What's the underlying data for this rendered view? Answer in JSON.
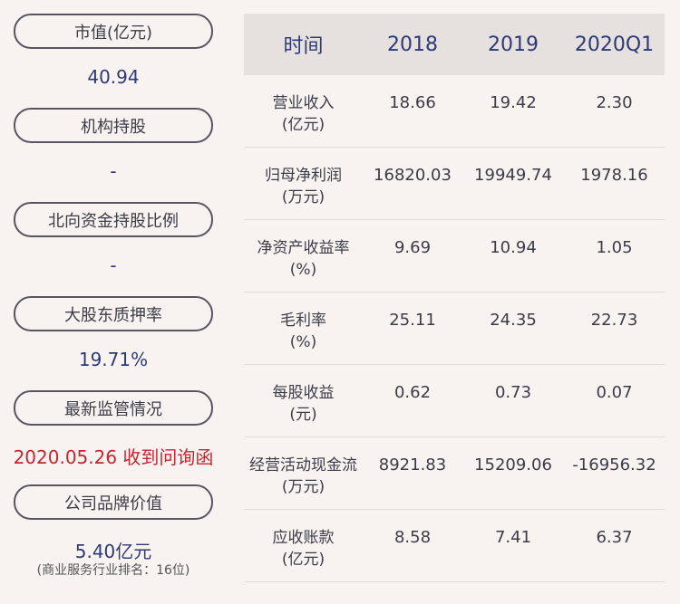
{
  "left_panel": [
    {
      "label": "市值(亿元)",
      "value": "40.94",
      "value_style": "normal"
    },
    {
      "label": "机构持股",
      "value": "-",
      "value_style": "normal"
    },
    {
      "label": "北向资金持股比例",
      "value": "-",
      "value_style": "normal"
    },
    {
      "label": "大股东质押率",
      "value": "19.71%",
      "value_style": "normal"
    },
    {
      "label": "最新监管情况",
      "value": "2020.05.26 收到问询函",
      "value_style": "red"
    },
    {
      "label": "公司品牌价值",
      "value": "5.40亿元",
      "value_style": "normal",
      "note": "(商业服务行业排名：16位)"
    }
  ],
  "table": {
    "headers": [
      "时间",
      "2018",
      "2019",
      "2020Q1"
    ],
    "rows": [
      {
        "label_line1": "营业收入",
        "label_line2": "(亿元)",
        "values": [
          "18.66",
          "19.42",
          "2.30"
        ]
      },
      {
        "label_line1": "归母净利润",
        "label_line2": "(万元)",
        "values": [
          "16820.03",
          "19949.74",
          "1978.16"
        ]
      },
      {
        "label_line1": "净资产收益率",
        "label_line2": "(%)",
        "values": [
          "9.69",
          "10.94",
          "1.05"
        ]
      },
      {
        "label_line1": "毛利率",
        "label_line2": "(%)",
        "values": [
          "25.11",
          "24.35",
          "22.73"
        ]
      },
      {
        "label_line1": "每股收益",
        "label_line2": "(元)",
        "values": [
          "0.62",
          "0.73",
          "0.07"
        ]
      },
      {
        "label_line1": "经营活动现金流",
        "label_line2": "(万元)",
        "values": [
          "8921.83",
          "15209.06",
          "-16956.32"
        ]
      },
      {
        "label_line1": "应收账款",
        "label_line2": "(亿元)",
        "values": [
          "8.58",
          "7.41",
          "6.37"
        ]
      }
    ]
  },
  "colors": {
    "background": "#f8f2f1",
    "header_bg": "#e6e0df",
    "value_blue": "#2e3a75",
    "alert_red": "#c5272f",
    "pill_border": "#585463"
  }
}
